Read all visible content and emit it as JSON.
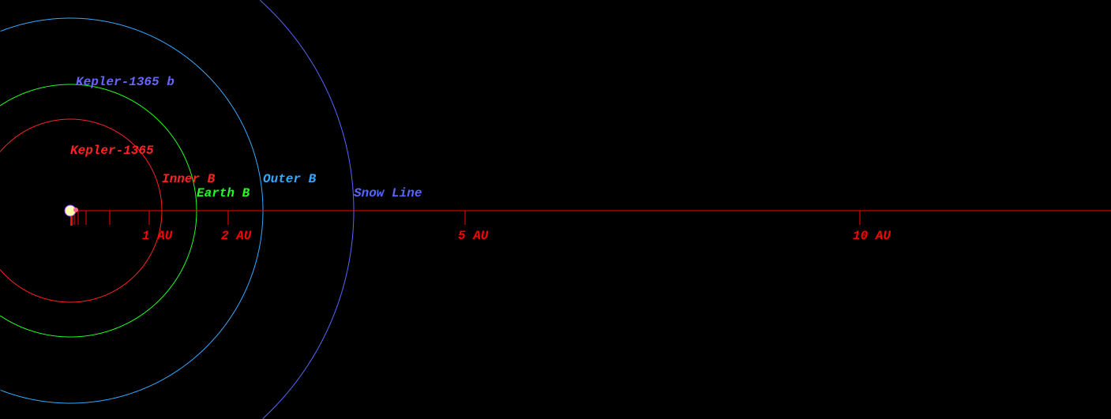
{
  "system": {
    "star_name": "Kepler-1365",
    "planet_name": "Kepler-1365 b",
    "colors": {
      "star": "#ffffaa",
      "star_border": "#8844ff",
      "axis": "#ff0000",
      "inner": "#ff0000",
      "earth": "#00ff00",
      "outer": "#33aaff",
      "snow": "#4455ff",
      "planet_label": "#6666ff"
    }
  },
  "zones": [
    {
      "label": "Inner B",
      "radius_au": 1.16,
      "color": "#ff2222"
    },
    {
      "label": "Earth B",
      "radius_au": 1.6,
      "color": "#22ff22"
    },
    {
      "label": "Outer B",
      "radius_au": 2.44,
      "color": "#33aaff"
    },
    {
      "label": "Snow Line",
      "radius_au": 3.59,
      "color": "#5566ff"
    }
  ],
  "axis": {
    "labels": [
      {
        "text": "1 AU",
        "au": 1
      },
      {
        "text": "2 AU",
        "au": 2
      },
      {
        "text": "5 AU",
        "au": 5
      },
      {
        "text": "10 AU",
        "au": 10
      }
    ],
    "minor_ticks_au": [
      0.05,
      0.1,
      0.2,
      0.5
    ]
  }
}
